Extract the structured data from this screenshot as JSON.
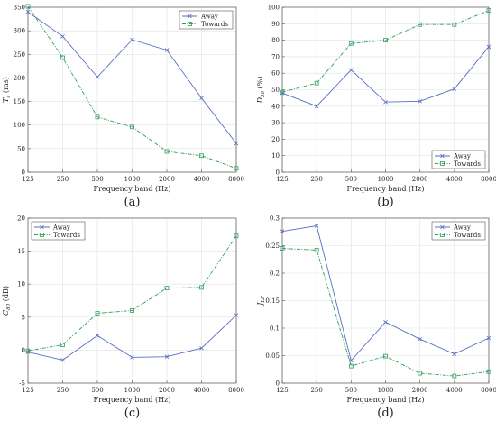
{
  "colors": {
    "away": "#5a6fc2",
    "towards": "#2e9e5e",
    "grid": "#e2e2e2",
    "axis": "#555555"
  },
  "chart_data": [
    {
      "panel": "(a)",
      "type": "line",
      "xlabel": "Frequency band (Hz)",
      "ylabel": "T_s (ms)",
      "ylabel_main": "T",
      "ylabel_sub": "s",
      "ylabel_unit": " (ms)",
      "categories": [
        "125",
        "250",
        "500",
        "1000",
        "2000",
        "4000",
        "8000"
      ],
      "ylim": [
        0,
        350
      ],
      "yticks": [
        "0",
        "50",
        "100",
        "150",
        "200",
        "250",
        "300",
        "350"
      ],
      "legend": "top-right",
      "series": [
        {
          "name": "Away",
          "values": [
            340,
            288,
            202,
            281,
            259,
            157,
            61
          ]
        },
        {
          "name": "Towards",
          "values": [
            352,
            243,
            117,
            96,
            44,
            35,
            8
          ]
        }
      ]
    },
    {
      "panel": "(b)",
      "type": "line",
      "xlabel": "Frequency band (Hz)",
      "ylabel": "D_50 (%)",
      "ylabel_main": "D",
      "ylabel_sub": "50",
      "ylabel_unit": " (%)",
      "categories": [
        "125",
        "250",
        "500",
        "1000",
        "2000",
        "4000",
        "8000"
      ],
      "ylim": [
        0,
        100
      ],
      "yticks": [
        "0",
        "10",
        "20",
        "30",
        "40",
        "50",
        "60",
        "70",
        "80",
        "90",
        "100"
      ],
      "legend": "bottom-right",
      "series": [
        {
          "name": "Away",
          "values": [
            48,
            40,
            62,
            42.5,
            43,
            50.5,
            76
          ]
        },
        {
          "name": "Towards",
          "values": [
            48.5,
            54,
            78,
            80,
            89.5,
            89.5,
            98
          ]
        }
      ]
    },
    {
      "panel": "(c)",
      "type": "line",
      "xlabel": "Frequency band (Hz)",
      "ylabel": "C_80 (dB)",
      "ylabel_main": "C",
      "ylabel_sub": "80",
      "ylabel_unit": " (dB)",
      "categories": [
        "125",
        "250",
        "500",
        "1000",
        "2000",
        "4000",
        "8000"
      ],
      "ylim": [
        -5,
        20
      ],
      "yticks": [
        "-5",
        "0",
        "5",
        "10",
        "15",
        "20"
      ],
      "legend": "top-left",
      "series": [
        {
          "name": "Away",
          "values": [
            -0.3,
            -1.5,
            2.2,
            -1.1,
            -1.0,
            0.3,
            5.3
          ]
        },
        {
          "name": "Towards",
          "values": [
            -0.1,
            0.8,
            5.6,
            6.0,
            9.4,
            9.5,
            17.3
          ]
        }
      ]
    },
    {
      "panel": "(d)",
      "type": "line",
      "xlabel": "Frequency band (Hz)",
      "ylabel": "J_LF",
      "ylabel_main": "J",
      "ylabel_sub": "LF",
      "ylabel_unit": "",
      "categories": [
        "125",
        "250",
        "500",
        "1000",
        "2000",
        "4000",
        "8000"
      ],
      "ylim": [
        0,
        0.3
      ],
      "yticks": [
        "0",
        "0.05",
        "0.1",
        "0.15",
        "0.2",
        "0.25",
        "0.3"
      ],
      "legend": "top-right",
      "series": [
        {
          "name": "Away",
          "values": [
            0.276,
            0.286,
            0.041,
            0.111,
            0.08,
            0.053,
            0.082
          ]
        },
        {
          "name": "Towards",
          "values": [
            0.245,
            0.242,
            0.031,
            0.049,
            0.018,
            0.013,
            0.021
          ]
        }
      ]
    }
  ]
}
